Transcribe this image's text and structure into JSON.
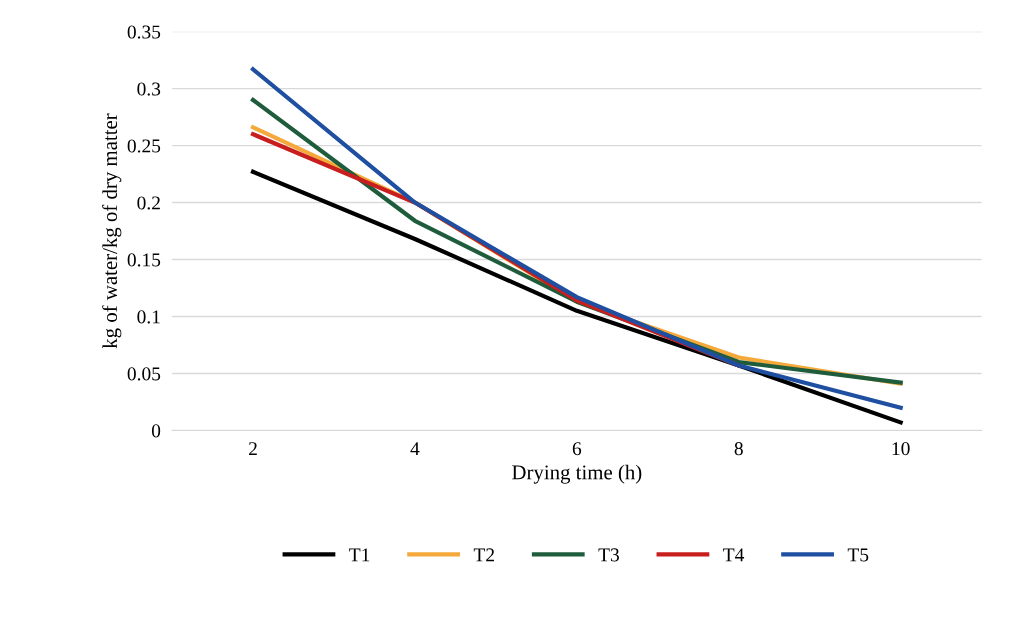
{
  "chart_data": {
    "type": "line",
    "xlabel": "Drying time (h)",
    "ylabel": "kg of water/kg of dry matter",
    "categories": [
      "2",
      "4",
      "6",
      "8",
      "10"
    ],
    "series": [
      {
        "name": "T1",
        "color": "#000000",
        "values": [
          0.227,
          0.168,
          0.105,
          0.057,
          0.007
        ]
      },
      {
        "name": "T2",
        "color": "#f4a93a",
        "values": [
          0.266,
          0.2,
          0.113,
          0.064,
          0.041
        ]
      },
      {
        "name": "T3",
        "color": "#1e5c3c",
        "values": [
          0.29,
          0.184,
          0.113,
          0.06,
          0.042
        ]
      },
      {
        "name": "T4",
        "color": "#c81e1e",
        "values": [
          0.26,
          0.2,
          0.114,
          0.057,
          null
        ]
      },
      {
        "name": "T5",
        "color": "#1f4fa0",
        "values": [
          0.317,
          0.2,
          0.117,
          0.057,
          0.02
        ]
      }
    ],
    "ylim": [
      0,
      0.35
    ],
    "yticks": [
      0,
      0.05,
      0.1,
      0.15,
      0.2,
      0.25,
      0.3,
      0.35
    ],
    "grid": "y",
    "legend": "bottom",
    "marker": "none",
    "line_style": "solid"
  }
}
